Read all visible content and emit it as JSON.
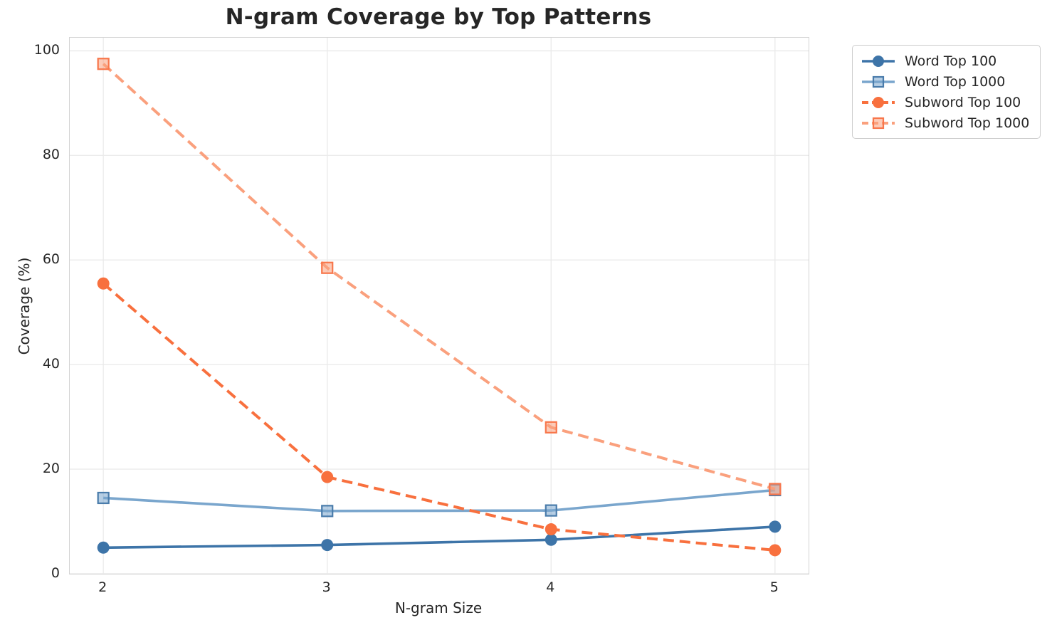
{
  "chart_data": {
    "type": "line",
    "title": "N-gram Coverage by Top Patterns",
    "xlabel": "N-gram Size",
    "ylabel": "Coverage (%)",
    "x": [
      2,
      3,
      4,
      5
    ],
    "xticks": [
      2,
      3,
      4,
      5
    ],
    "yticks": [
      0,
      20,
      40,
      60,
      80,
      100
    ],
    "xlim": [
      1.85,
      5.15
    ],
    "ylim": [
      0,
      102.5
    ],
    "grid": true,
    "grid_color": "#ebebeb",
    "spine_color": "#d4d4d4",
    "legend_position": "outside-top-right",
    "series": [
      {
        "name": "Word Top 100",
        "values": [
          5.0,
          5.5,
          6.5,
          9.0
        ],
        "color": "#3d74a8",
        "line_style": "solid",
        "marker": "circle"
      },
      {
        "name": "Word Top 1000",
        "values": [
          14.5,
          12.0,
          12.1,
          16.0
        ],
        "color": "#7aa6cd",
        "line_style": "solid",
        "marker": "square",
        "marker_edge": "#4a7cab"
      },
      {
        "name": "Subword Top 100",
        "values": [
          55.5,
          18.5,
          8.5,
          4.5
        ],
        "color": "#f8703e",
        "line_style": "dashed",
        "marker": "circle"
      },
      {
        "name": "Subword Top 1000",
        "values": [
          97.5,
          58.5,
          28.0,
          16.2
        ],
        "color": "#faa07d",
        "line_style": "dashed",
        "marker": "square",
        "marker_edge": "#f8764b"
      }
    ]
  }
}
